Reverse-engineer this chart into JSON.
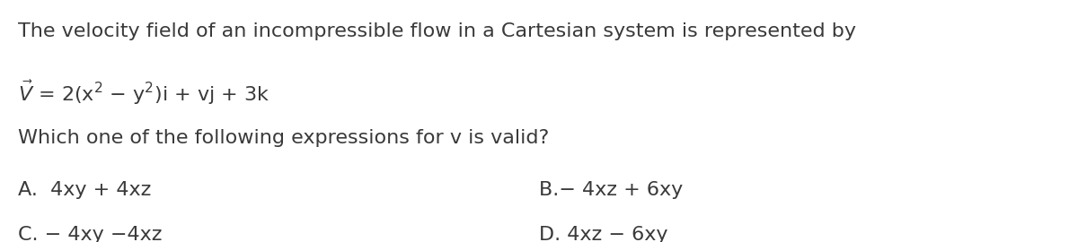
{
  "background_color": "#ffffff",
  "figsize": [
    12.0,
    2.7
  ],
  "dpi": 100,
  "line1": "The velocity field of an incompressible flow in a Cartesian system is represented by",
  "line3": "Which one of the following expressions for v is valid?",
  "optA": "A.  4xy + 4xz",
  "optB": "B.− 4xz + 6xy",
  "optC": "C. − 4xy −4xz",
  "optD": "D. 4xz − 6xy",
  "text_color": "#3a3a3a",
  "font_size_main": 16,
  "font_family": "DejaVu Sans"
}
